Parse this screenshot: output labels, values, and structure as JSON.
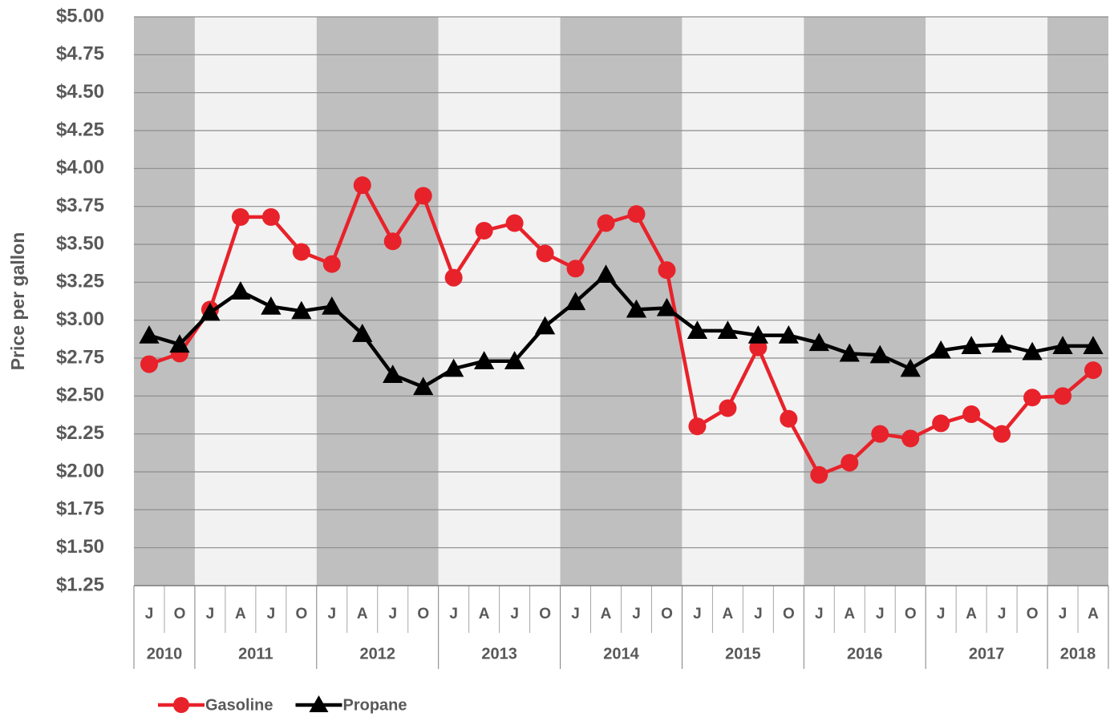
{
  "chart_data": {
    "type": "line",
    "y_label": "Price per gallon",
    "groups": [
      {
        "label": "2010",
        "categories": [
          "J",
          "O"
        ]
      },
      {
        "label": "2011",
        "categories": [
          "J",
          "A",
          "J",
          "O"
        ]
      },
      {
        "label": "2012",
        "categories": [
          "J",
          "A",
          "J",
          "O"
        ]
      },
      {
        "label": "2013",
        "categories": [
          "J",
          "A",
          "J",
          "O"
        ]
      },
      {
        "label": "2014",
        "categories": [
          "J",
          "A",
          "J",
          "O"
        ]
      },
      {
        "label": "2015",
        "categories": [
          "J",
          "A",
          "J",
          "O"
        ]
      },
      {
        "label": "2016",
        "categories": [
          "J",
          "A",
          "J",
          "O"
        ]
      },
      {
        "label": "2017",
        "categories": [
          "J",
          "A",
          "J",
          "O"
        ]
      },
      {
        "label": "2018",
        "categories": [
          "J",
          "A"
        ]
      }
    ],
    "series": [
      {
        "name": "Gasoline",
        "color": "#e8222a",
        "marker": "circle",
        "values": [
          2.71,
          2.78,
          3.07,
          3.68,
          3.68,
          3.45,
          3.37,
          3.89,
          3.52,
          3.82,
          3.28,
          3.59,
          3.64,
          3.44,
          3.34,
          3.64,
          3.7,
          3.33,
          2.3,
          2.42,
          2.82,
          2.35,
          1.98,
          2.06,
          2.25,
          2.22,
          2.32,
          2.38,
          2.25,
          2.49,
          2.5,
          2.67
        ]
      },
      {
        "name": "Propane",
        "color": "#000000",
        "marker": "triangle",
        "values": [
          2.9,
          2.84,
          3.05,
          3.19,
          3.09,
          3.06,
          3.09,
          2.91,
          2.64,
          2.56,
          2.68,
          2.73,
          2.73,
          2.96,
          3.12,
          3.3,
          3.07,
          3.08,
          2.93,
          2.93,
          2.9,
          2.9,
          2.85,
          2.78,
          2.77,
          2.68,
          2.8,
          2.83,
          2.84,
          2.79,
          2.83,
          2.83
        ]
      }
    ],
    "ylim": [
      1.25,
      5.0
    ],
    "yticks": [
      {
        "value": 1.25,
        "label": "$1.25"
      },
      {
        "value": 1.5,
        "label": "$1.50"
      },
      {
        "value": 1.75,
        "label": "$1.75"
      },
      {
        "value": 2.0,
        "label": "$2.00"
      },
      {
        "value": 2.25,
        "label": "$2.25"
      },
      {
        "value": 2.5,
        "label": "$2.50"
      },
      {
        "value": 2.75,
        "label": "$2.75"
      },
      {
        "value": 3.0,
        "label": "$3.00"
      },
      {
        "value": 3.25,
        "label": "$3.25"
      },
      {
        "value": 3.5,
        "label": "$3.50"
      },
      {
        "value": 3.75,
        "label": "$3.75"
      },
      {
        "value": 4.0,
        "label": "$4.00"
      },
      {
        "value": 4.25,
        "label": "$4.25"
      },
      {
        "value": 4.5,
        "label": "$4.50"
      },
      {
        "value": 4.75,
        "label": "$4.75"
      },
      {
        "value": 5.0,
        "label": "$5.00"
      }
    ],
    "grid": true,
    "legend": "bottom-left"
  }
}
